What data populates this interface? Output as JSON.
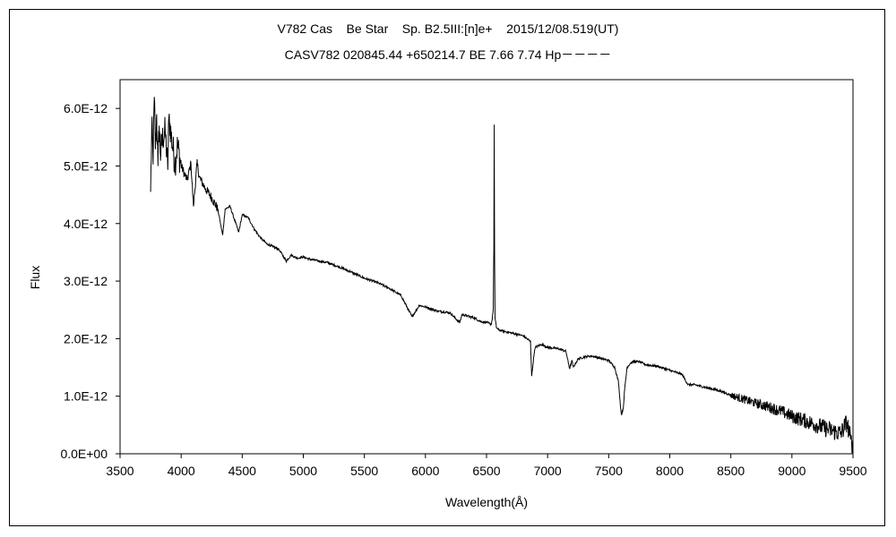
{
  "chart_data": {
    "type": "line",
    "title": "V782 Cas    Be Star    Sp. B2.5III:[n]e+    2015/12/08.519(UT)",
    "subtitle": "CASV782 020845.44 +650214.7 BE 7.66 7.74 Hp－－－－",
    "xlabel": "Wavelength(Å)",
    "ylabel": "Flux",
    "xlim": [
      3500,
      9500
    ],
    "ylim": [
      0,
      6.5e-12
    ],
    "x_ticks": [
      3500,
      4000,
      4500,
      5000,
      5500,
      6000,
      6500,
      7000,
      7500,
      8000,
      8500,
      9000,
      9500
    ],
    "x_tick_labels": [
      "3500",
      "4000",
      "4500",
      "5000",
      "5500",
      "6000",
      "6500",
      "7000",
      "7500",
      "8000",
      "8500",
      "9000",
      "9500"
    ],
    "y_ticks": [
      0,
      1e-12,
      2e-12,
      3e-12,
      4e-12,
      5e-12,
      6e-12
    ],
    "y_tick_labels": [
      "0.0E+00",
      "1.0E-12",
      "2.0E-12",
      "3.0E-12",
      "4.0E-12",
      "5.0E-12",
      "6.0E-12"
    ],
    "grid": false,
    "legend": "none",
    "line_color": "#000000",
    "series": [
      {
        "x": [
          3750,
          3760,
          3770,
          3780,
          3790,
          3800,
          3810,
          3820,
          3830,
          3850,
          3870,
          3890,
          3900,
          3920,
          3950,
          3970,
          4000,
          4030,
          4050,
          4080,
          4101,
          4130,
          4150,
          4200,
          4250,
          4300,
          4340,
          4360,
          4400,
          4471,
          4500,
          4550,
          4600,
          4650,
          4700,
          4750,
          4800,
          4861,
          4900,
          4950,
          5000,
          5050,
          5100,
          5150,
          5200,
          5250,
          5300,
          5400,
          5500,
          5600,
          5700,
          5800,
          5890,
          5950,
          6000,
          6100,
          6200,
          6280,
          6300,
          6400,
          6450,
          6500,
          6540,
          6555,
          6560,
          6563,
          6566,
          6570,
          6580,
          6600,
          6700,
          6800,
          6860,
          6870,
          6880,
          6890,
          6900,
          6950,
          7000,
          7100,
          7150,
          7180,
          7200,
          7210,
          7250,
          7300,
          7350,
          7400,
          7450,
          7500,
          7550,
          7580,
          7600,
          7605,
          7610,
          7620,
          7630,
          7640,
          7650,
          7680,
          7700,
          7750,
          7800,
          7900,
          8000,
          8100,
          8150,
          8200,
          8300,
          8400,
          8500,
          8600,
          8700,
          8800,
          8900,
          9000,
          9100,
          9200,
          9300,
          9400,
          9450,
          9480,
          9500
        ],
        "y": [
          4.55e-12,
          5.7e-12,
          5.1e-12,
          6.2e-12,
          5.3e-12,
          5.9e-12,
          5e-12,
          5.7e-12,
          5.2e-12,
          5.5e-12,
          5.6e-12,
          4.95e-12,
          5.85e-12,
          5.5e-12,
          5.05e-12,
          5.35e-12,
          5e-12,
          4.85e-12,
          4.75e-12,
          5.05e-12,
          4.3e-12,
          5.05e-12,
          4.8e-12,
          4.6e-12,
          4.45e-12,
          4.25e-12,
          3.8e-12,
          4.25e-12,
          4.3e-12,
          3.85e-12,
          4.15e-12,
          4.1e-12,
          3.9e-12,
          3.75e-12,
          3.65e-12,
          3.6e-12,
          3.55e-12,
          3.35e-12,
          3.45e-12,
          3.4e-12,
          3.42e-12,
          3.38e-12,
          3.36e-12,
          3.34e-12,
          3.32e-12,
          3.28e-12,
          3.24e-12,
          3.15e-12,
          3.05e-12,
          2.98e-12,
          2.88e-12,
          2.75e-12,
          2.38e-12,
          2.58e-12,
          2.55e-12,
          2.48e-12,
          2.45e-12,
          2.28e-12,
          2.42e-12,
          2.36e-12,
          2.3e-12,
          2.28e-12,
          2.25e-12,
          2.5e-12,
          3.6e-12,
          5.72e-12,
          3.5e-12,
          2.35e-12,
          2.2e-12,
          2.15e-12,
          2.1e-12,
          2.05e-12,
          1.95e-12,
          1.35e-12,
          1.55e-12,
          1.75e-12,
          1.85e-12,
          1.9e-12,
          1.85e-12,
          1.82e-12,
          1.78e-12,
          1.48e-12,
          1.62e-12,
          1.5e-12,
          1.65e-12,
          1.68e-12,
          1.7e-12,
          1.68e-12,
          1.65e-12,
          1.62e-12,
          1.5e-12,
          1.25e-12,
          7.5e-13,
          6.8e-13,
          7.2e-13,
          8e-13,
          1.1e-12,
          1.3e-12,
          1.5e-12,
          1.58e-12,
          1.6e-12,
          1.6e-12,
          1.55e-12,
          1.52e-12,
          1.45e-12,
          1.38e-12,
          1.2e-12,
          1.2e-12,
          1.15e-12,
          1.1e-12,
          1.02e-12,
          9.5e-13,
          8.8e-13,
          8.2e-13,
          7.5e-13,
          6.5e-13,
          5.8e-13,
          5e-13,
          4.2e-13,
          3.5e-13,
          5.5e-13,
          2.5e-13,
          8e-14
        ]
      }
    ]
  }
}
